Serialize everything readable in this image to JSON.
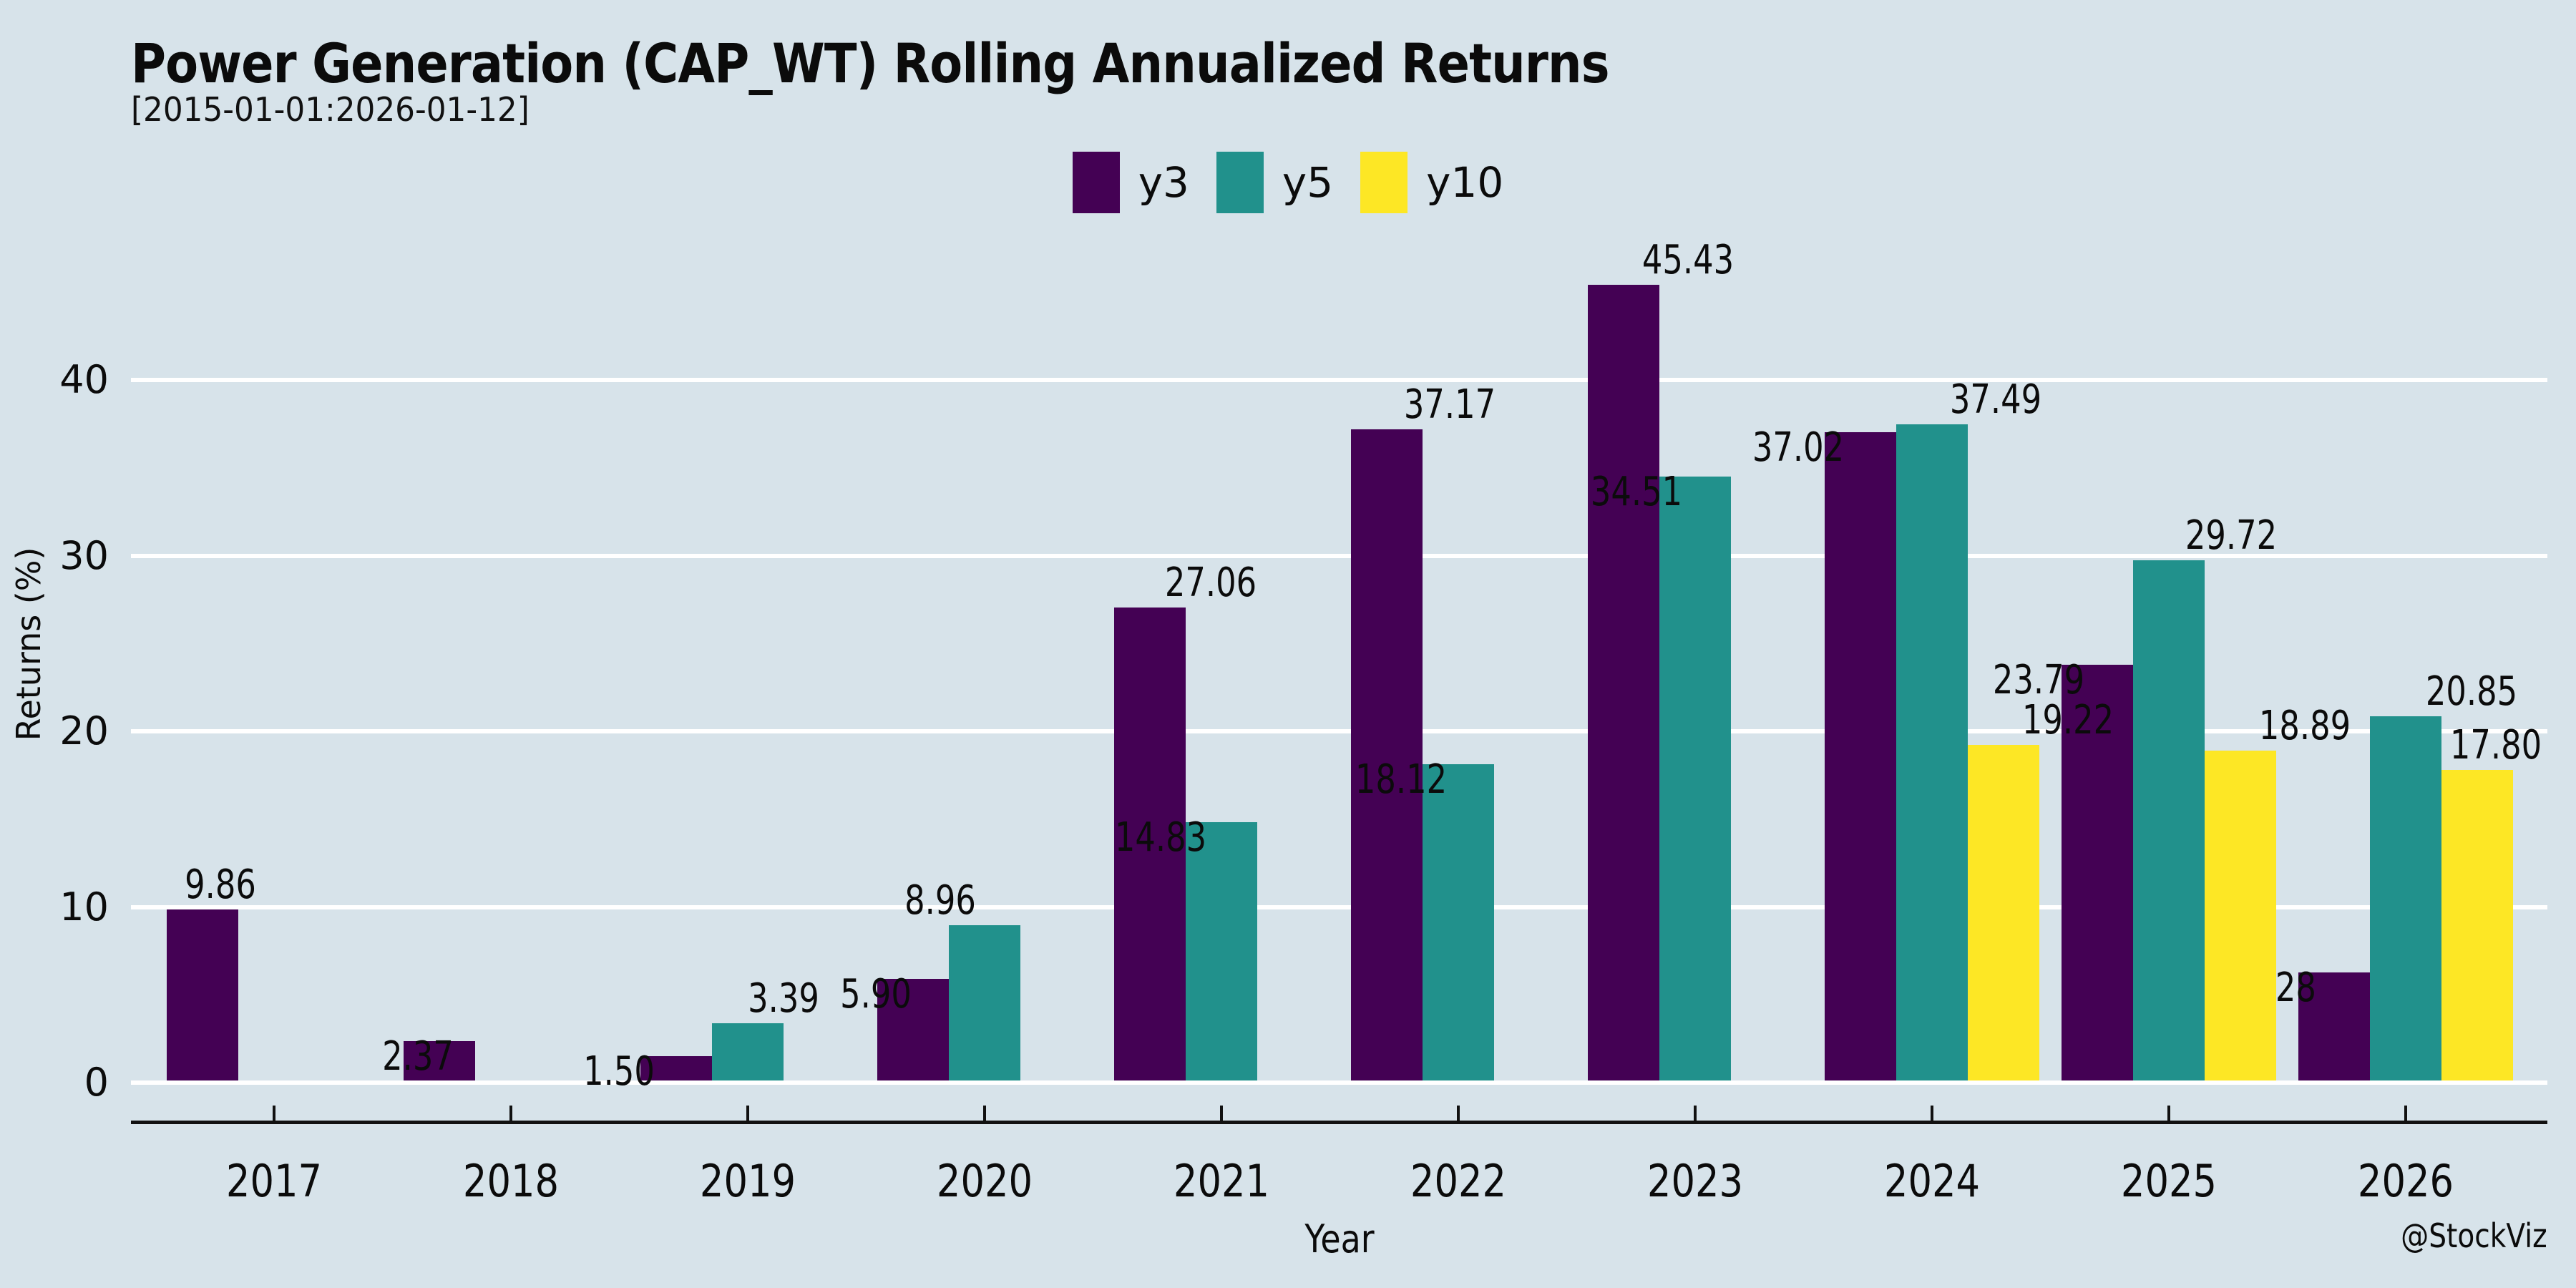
{
  "header": {
    "title": "Power Generation (CAP_WT) Rolling Annualized Returns",
    "subtitle": "[2015-01-01:2026-01-12]"
  },
  "watermark": "@StockViz",
  "colors": {
    "background": "#d7e3ea",
    "gridline": "#ffffff",
    "axis": "#111111",
    "text": "#0b0b0b"
  },
  "chart_data": {
    "type": "bar",
    "title": "Power Generation (CAP_WT) Rolling Annualized Returns",
    "subtitle": "[2015-01-01:2026-01-12]",
    "xlabel": "Year",
    "ylabel": "Returns (%)",
    "categories": [
      "2017",
      "2018",
      "2019",
      "2020",
      "2021",
      "2022",
      "2023",
      "2024",
      "2025",
      "2026"
    ],
    "series": [
      {
        "name": "y3",
        "color": "#440154",
        "values": [
          9.86,
          2.37,
          1.5,
          5.9,
          27.06,
          37.17,
          45.43,
          37.02,
          23.79,
          6.28
        ]
      },
      {
        "name": "y5",
        "color": "#21918c",
        "values": [
          null,
          null,
          3.39,
          8.96,
          14.83,
          18.12,
          34.51,
          37.49,
          29.72,
          20.85
        ]
      },
      {
        "name": "y10",
        "color": "#fde725",
        "values": [
          null,
          null,
          null,
          null,
          null,
          null,
          null,
          19.22,
          18.89,
          17.8
        ]
      }
    ],
    "ylim": [
      0,
      48
    ],
    "yticks": [
      0,
      10,
      20,
      30,
      40
    ],
    "grid": true,
    "legend_position": "top",
    "value_labels": true,
    "label_decimals": 2
  }
}
